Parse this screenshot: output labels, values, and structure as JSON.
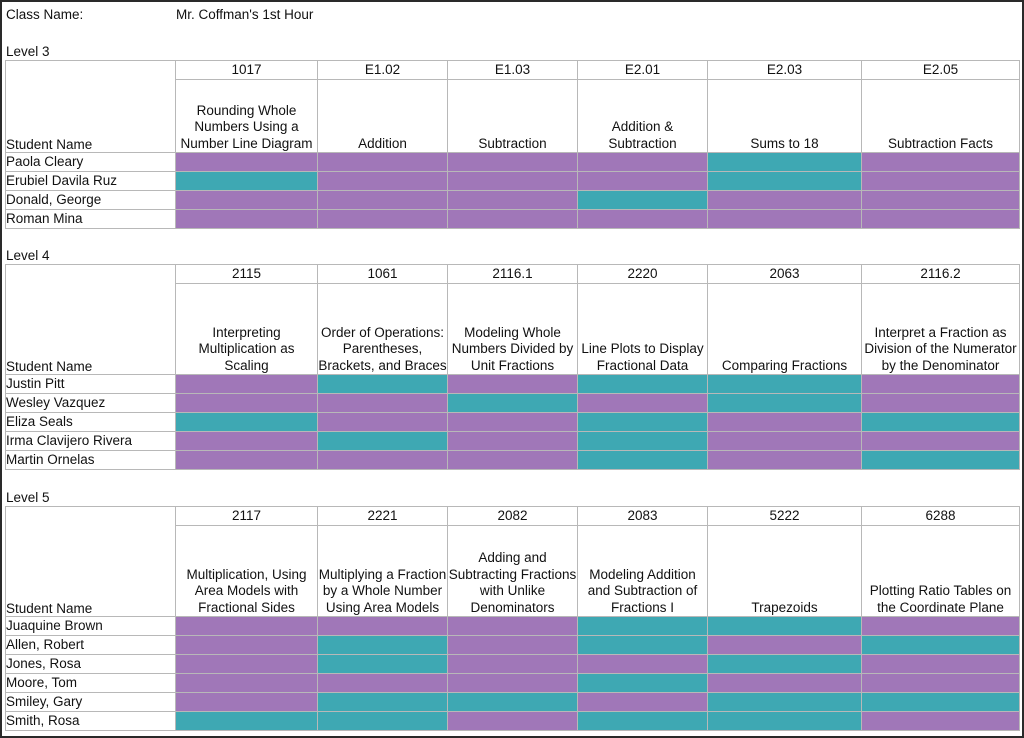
{
  "header": {
    "class_label": "Class Name:",
    "class_value": "Mr. Coffman's 1st Hour"
  },
  "colors": {
    "P": "#a077b8",
    "T": "#3ea8b3"
  },
  "levels": [
    {
      "title": "Level 3",
      "student_name_header": "Student Name",
      "columns": [
        {
          "code": "1017",
          "title": "Rounding Whole Numbers Using a Number Line Diagram"
        },
        {
          "code": "E1.02",
          "title": "Addition"
        },
        {
          "code": "E1.03",
          "title": "Subtraction"
        },
        {
          "code": "E2.01",
          "title": "Addition & Subtraction"
        },
        {
          "code": "E2.03",
          "title": "Sums to 18"
        },
        {
          "code": "E2.05",
          "title": "Subtraction Facts"
        }
      ],
      "students": [
        {
          "name": "Paola Cleary",
          "cells": [
            "P",
            "P",
            "P",
            "P",
            "T",
            "P"
          ]
        },
        {
          "name": "Erubiel Davila Ruz",
          "cells": [
            "T",
            "P",
            "P",
            "P",
            "T",
            "P"
          ]
        },
        {
          "name": "Donald, George",
          "cells": [
            "P",
            "P",
            "P",
            "T",
            "P",
            "P"
          ]
        },
        {
          "name": "Roman Mina",
          "cells": [
            "P",
            "P",
            "P",
            "P",
            "P",
            "P"
          ]
        }
      ]
    },
    {
      "title": "Level 4",
      "student_name_header": "Student Name",
      "columns": [
        {
          "code": "2115",
          "title": "Interpreting Multiplication as Scaling"
        },
        {
          "code": "1061",
          "title": "Order of Operations: Parentheses, Brackets, and Braces"
        },
        {
          "code": "2116.1",
          "title": "Modeling Whole Numbers Divided by Unit Fractions"
        },
        {
          "code": "2220",
          "title": "Line Plots to Display Fractional Data"
        },
        {
          "code": "2063",
          "title": "Comparing Fractions"
        },
        {
          "code": "2116.2",
          "title": "Interpret a Fraction as Division of the Numerator by the Denominator"
        }
      ],
      "students": [
        {
          "name": "Justin Pitt",
          "cells": [
            "P",
            "T",
            "P",
            "T",
            "T",
            "P"
          ]
        },
        {
          "name": "Wesley Vazquez",
          "cells": [
            "P",
            "P",
            "T",
            "P",
            "T",
            "P"
          ]
        },
        {
          "name": "Eliza Seals",
          "cells": [
            "T",
            "P",
            "P",
            "T",
            "P",
            "T"
          ]
        },
        {
          "name": "Irma Clavijero Rivera",
          "cells": [
            "P",
            "T",
            "P",
            "T",
            "P",
            "P"
          ]
        },
        {
          "name": "Martin Ornelas",
          "cells": [
            "P",
            "P",
            "P",
            "T",
            "P",
            "T"
          ]
        }
      ]
    },
    {
      "title": "Level 5",
      "student_name_header": "Student Name",
      "columns": [
        {
          "code": "2117",
          "title": "Multiplication, Using Area Models with Fractional Sides"
        },
        {
          "code": "2221",
          "title": "Multiplying a Fraction by a Whole Number Using Area Models"
        },
        {
          "code": "2082",
          "title": "Adding and Subtracting Fractions with Unlike Denominators"
        },
        {
          "code": "2083",
          "title": "Modeling Addition and Subtraction of Fractions I"
        },
        {
          "code": "5222",
          "title": "Trapezoids"
        },
        {
          "code": "6288",
          "title": "Plotting Ratio Tables on the Coordinate Plane"
        }
      ],
      "students": [
        {
          "name": "Juaquine Brown",
          "cells": [
            "P",
            "P",
            "P",
            "T",
            "T",
            "P"
          ]
        },
        {
          "name": "Allen, Robert",
          "cells": [
            "P",
            "T",
            "P",
            "T",
            "P",
            "T"
          ]
        },
        {
          "name": "Jones, Rosa",
          "cells": [
            "P",
            "T",
            "P",
            "P",
            "T",
            "P"
          ]
        },
        {
          "name": "Moore, Tom",
          "cells": [
            "P",
            "P",
            "P",
            "T",
            "P",
            "P"
          ]
        },
        {
          "name": "Smiley, Gary",
          "cells": [
            "P",
            "T",
            "T",
            "P",
            "T",
            "T"
          ]
        },
        {
          "name": "Smith, Rosa",
          "cells": [
            "T",
            "T",
            "P",
            "T",
            "T",
            "P"
          ]
        }
      ]
    }
  ]
}
